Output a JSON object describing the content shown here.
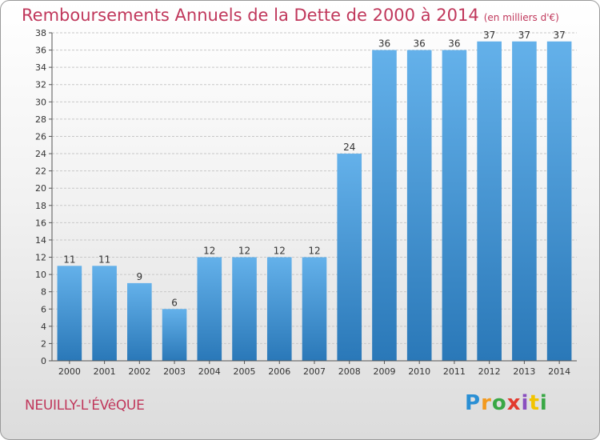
{
  "header": {
    "title": "Remboursements Annuels de la Dette de 2000 à 2014",
    "unit_note": "(en milliers d'€)"
  },
  "footer": {
    "city": "NEUILLY-L'ÉVêQUE",
    "logo": {
      "letters": [
        "P",
        "r",
        "o",
        "x",
        "i",
        "t",
        "i"
      ],
      "colors": [
        "#2a8fd4",
        "#f29a1f",
        "#39a845",
        "#e23a2e",
        "#8a4fbf",
        "#f2c400",
        "#39a845"
      ]
    }
  },
  "colors": {
    "bar_light": "#64b1ea",
    "bar_dark": "#2a78b8",
    "grid": "#c8c8c8",
    "accent": "#c0375b"
  },
  "chart_data": {
    "type": "bar",
    "categories": [
      "2000",
      "2001",
      "2002",
      "2003",
      "2004",
      "2005",
      "2006",
      "2007",
      "2008",
      "2009",
      "2010",
      "2011",
      "2012",
      "2013",
      "2014"
    ],
    "values": [
      11,
      11,
      9,
      6,
      12,
      12,
      12,
      12,
      24,
      36,
      36,
      36,
      37,
      37,
      37
    ],
    "data_labels": [
      "11",
      "11",
      "9",
      "6",
      "12",
      "12",
      "12",
      "12",
      "24",
      "36",
      "36",
      "36",
      "37",
      "37",
      "37"
    ],
    "y_ticks": [
      "0",
      "2",
      "4",
      "6",
      "8",
      "10",
      "12",
      "14",
      "16",
      "18",
      "20",
      "22",
      "24",
      "26",
      "28",
      "30",
      "32",
      "34",
      "36",
      "38"
    ],
    "ylim": [
      0,
      38
    ],
    "grid": true,
    "legend": "none"
  }
}
